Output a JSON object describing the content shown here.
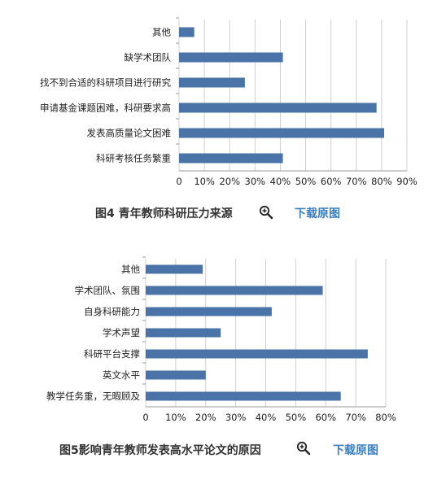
{
  "chart_data": [
    {
      "type": "bar",
      "orientation": "horizontal",
      "categories": [
        "其他",
        "缺学术团队",
        "找不到合适的科研项目进行研究",
        "申请基金课题困难，科研要求高",
        "发表高质量论文困难",
        "科研考核任务繁重"
      ],
      "values": [
        6,
        41,
        26,
        78,
        81,
        41
      ],
      "xlim": [
        0,
        90
      ],
      "xticks": [
        "0",
        "10%",
        "20%",
        "30%",
        "40%",
        "50%",
        "60%",
        "70%",
        "80%",
        "90%"
      ],
      "grid": true,
      "bar_color": "#4a74a8",
      "caption": "图4 青年教师科研压力来源"
    },
    {
      "type": "bar",
      "orientation": "horizontal",
      "categories": [
        "其他",
        "学术团队、氛围",
        "自身科研能力",
        "学术声望",
        "科研平台支撑",
        "英文水平",
        "教学任务重，无暇顾及"
      ],
      "values": [
        19,
        59,
        42,
        25,
        74,
        20,
        65
      ],
      "xlim": [
        0,
        80
      ],
      "xticks": [
        "0",
        "10%",
        "20%",
        "30%",
        "40%",
        "50%",
        "60%",
        "70%",
        "80%"
      ],
      "grid": true,
      "bar_color": "#4a74a8",
      "caption": "图5影响青年教师发表高水平论文的原因"
    }
  ],
  "download_label": "下载原图",
  "zoom_icon": "magnifier-plus-icon",
  "colors": {
    "bar": "#4a74a8",
    "grid": "#d0d0d0",
    "link": "#3a7fc1"
  }
}
